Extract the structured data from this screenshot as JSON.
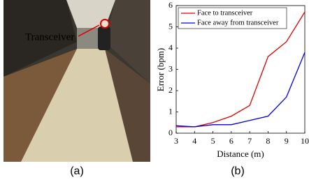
{
  "photo": {
    "annotation": "Transceiver",
    "caption": "(a)"
  },
  "chart_data": {
    "type": "line",
    "panel_label": "(b)",
    "x_label": "Distance (m)",
    "y_label": "Error (bpm)",
    "x": [
      3,
      4,
      5,
      6,
      7,
      8,
      9,
      10
    ],
    "series": [
      {
        "name": "Face to transceiver",
        "color": "#e00000",
        "values": [
          0.3,
          0.3,
          0.5,
          0.8,
          1.3,
          3.6,
          4.3,
          5.7
        ]
      },
      {
        "name": "Face away from transceiver",
        "color": "#0000e0",
        "values": [
          0.35,
          0.3,
          0.4,
          0.4,
          0.6,
          0.8,
          1.7,
          3.8
        ]
      }
    ],
    "xlim": [
      3,
      10
    ],
    "xticks": [
      3,
      4,
      5,
      6,
      7,
      8,
      9,
      10
    ],
    "ylim": [
      0,
      6
    ],
    "yticks": [
      0,
      1,
      2,
      3,
      4,
      5,
      6
    ],
    "grid": false,
    "legend": "top-left"
  }
}
